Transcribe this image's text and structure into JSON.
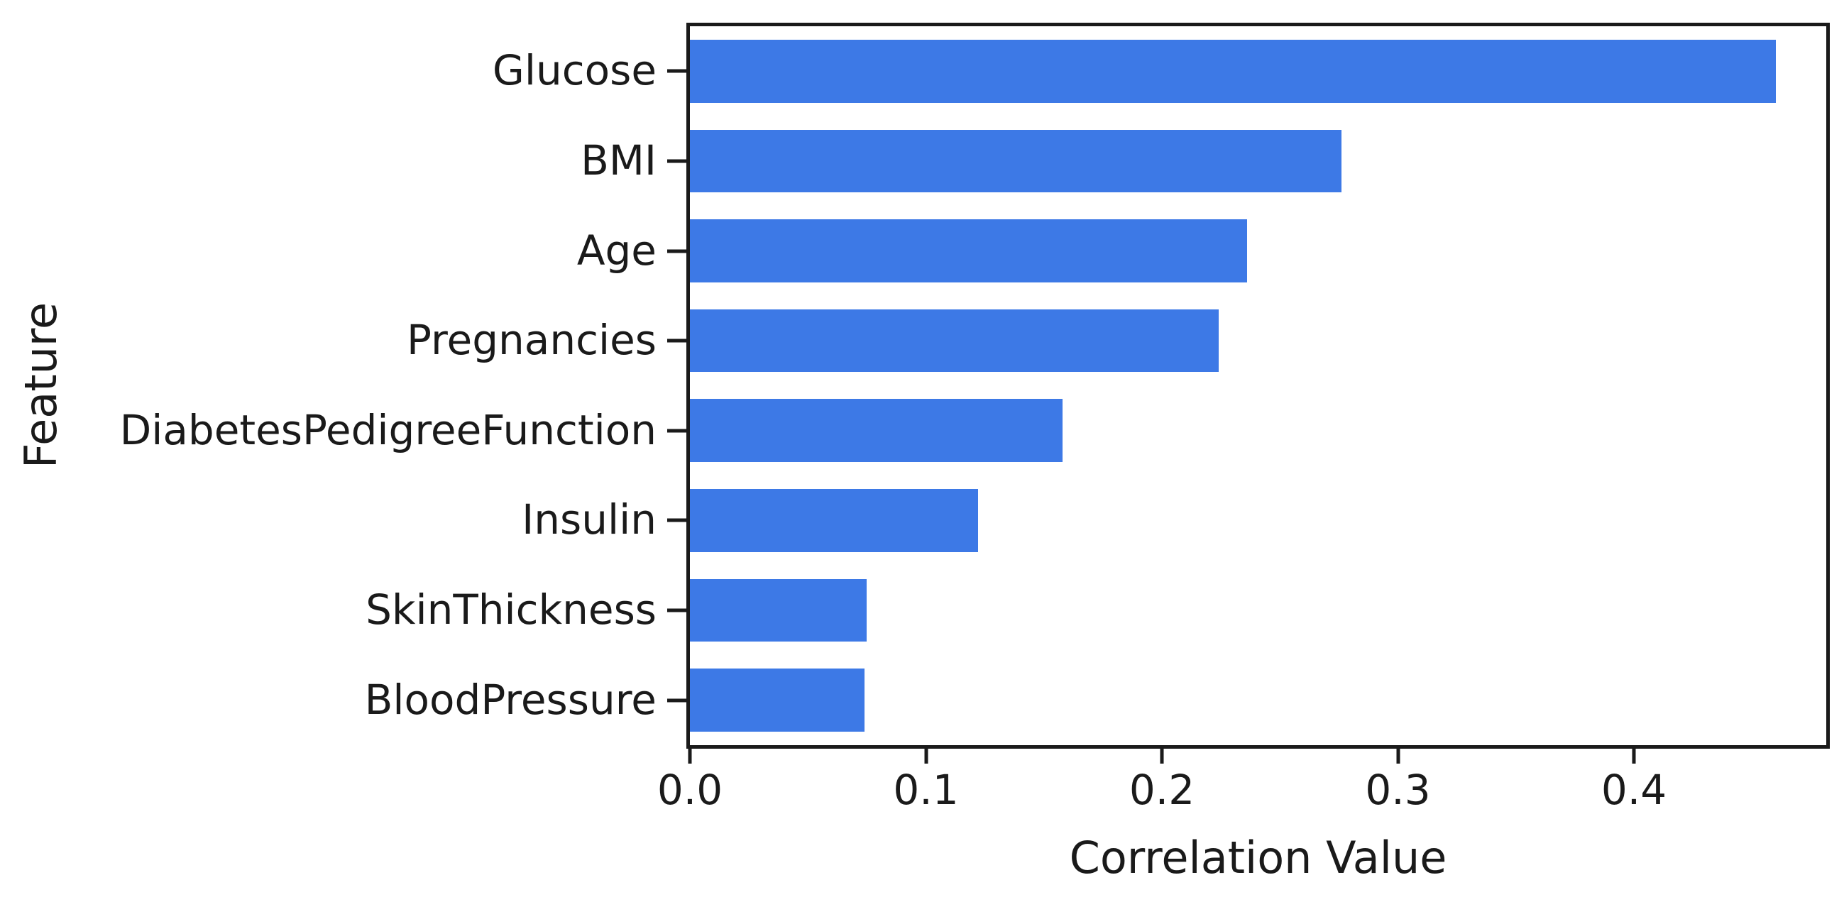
{
  "chart_data": {
    "type": "bar",
    "orientation": "horizontal",
    "title": "",
    "xlabel": "Correlation Value",
    "ylabel": "Feature",
    "categories": [
      "Glucose",
      "BMI",
      "Age",
      "Pregnancies",
      "DiabetesPedigreeFunction",
      "Insulin",
      "SkinThickness",
      "BloodPressure"
    ],
    "values": [
      0.46,
      0.276,
      0.236,
      0.224,
      0.158,
      0.122,
      0.075,
      0.074
    ],
    "xlim": [
      0,
      0.4815
    ],
    "x_tick_values": [
      0.0,
      0.1,
      0.2,
      0.3,
      0.4
    ],
    "x_tick_labels": [
      "0.0",
      "0.1",
      "0.2",
      "0.3",
      "0.4"
    ],
    "bar_height_fraction": 0.7,
    "grid": false,
    "legend": null
  },
  "colors": {
    "bar": "#3d79e6",
    "spine": "#1a1a1a",
    "text": "#1a1a1a",
    "background": "#ffffff"
  }
}
